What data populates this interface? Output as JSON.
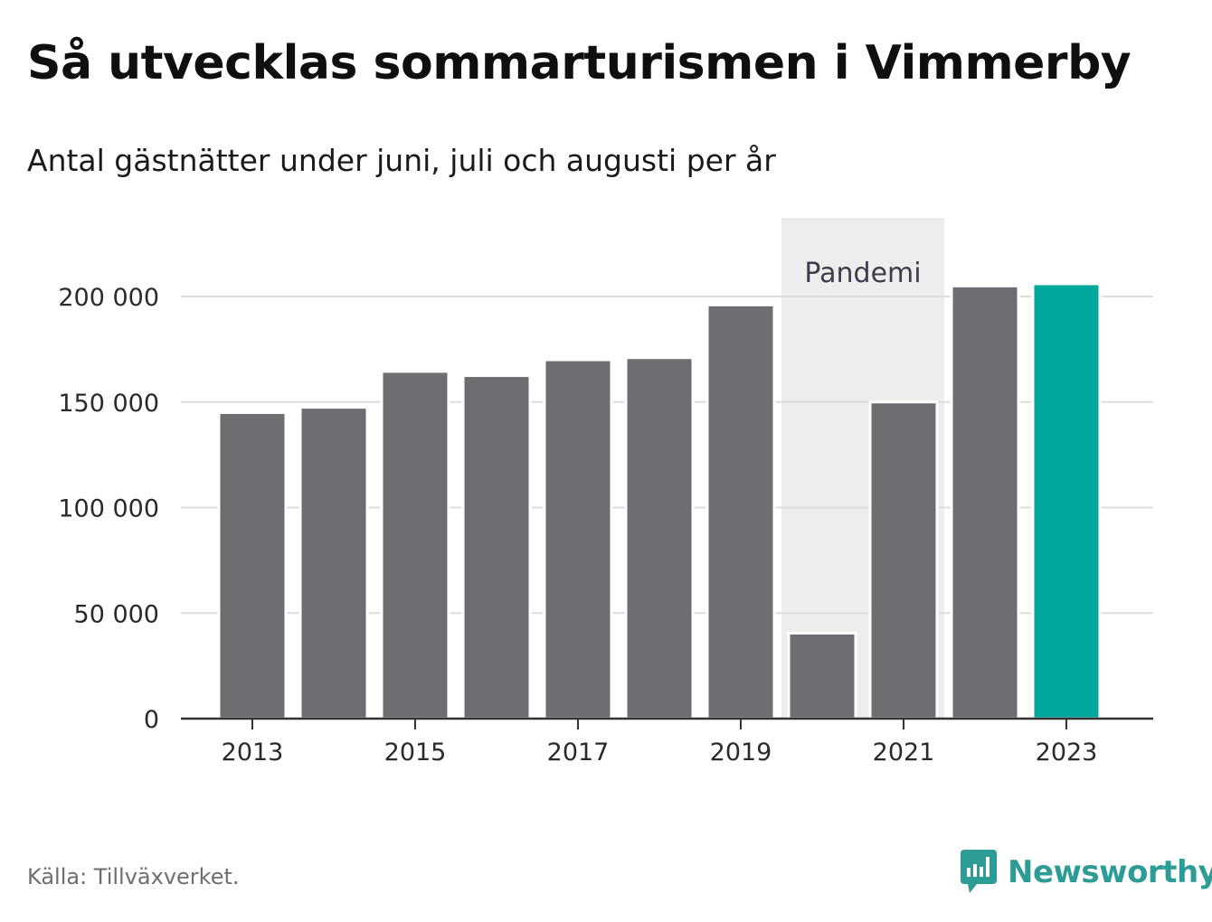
{
  "header": {
    "title": "Så utvecklas sommarturismen i Vimmerby",
    "subtitle": "Antal gästnätter under juni, juli och augusti per år"
  },
  "footer": {
    "source": "Källa: Tillväxverket.",
    "brand": "Newsworthy"
  },
  "colors": {
    "bar": "#6e6d72",
    "highlight": "#00a79b",
    "band": "#ededed",
    "grid": "#dddddd",
    "brand": "#2d9c95"
  },
  "chart_data": {
    "type": "bar",
    "title": "Så utvecklas sommarturismen i Vimmerby",
    "subtitle": "Antal gästnätter under juni, juli och augusti per år",
    "categories": [
      "2013",
      "2014",
      "2015",
      "2016",
      "2017",
      "2018",
      "2019",
      "2020",
      "2021",
      "2022",
      "2023"
    ],
    "values": [
      145000,
      147500,
      164500,
      162500,
      170000,
      171000,
      196000,
      40500,
      150000,
      205000,
      206000
    ],
    "highlight_category": "2023",
    "ylim": [
      0,
      200000
    ],
    "yticks": [
      0,
      50000,
      100000,
      150000,
      200000
    ],
    "ytick_labels": [
      "0",
      "50 000",
      "100 000",
      "150 000",
      "200 000"
    ],
    "xtick_labels": [
      "2013",
      "2015",
      "2017",
      "2019",
      "2021",
      "2023"
    ],
    "grid": true,
    "annotation": {
      "label": "Pandemi",
      "from": "2020",
      "to": "2021"
    }
  }
}
